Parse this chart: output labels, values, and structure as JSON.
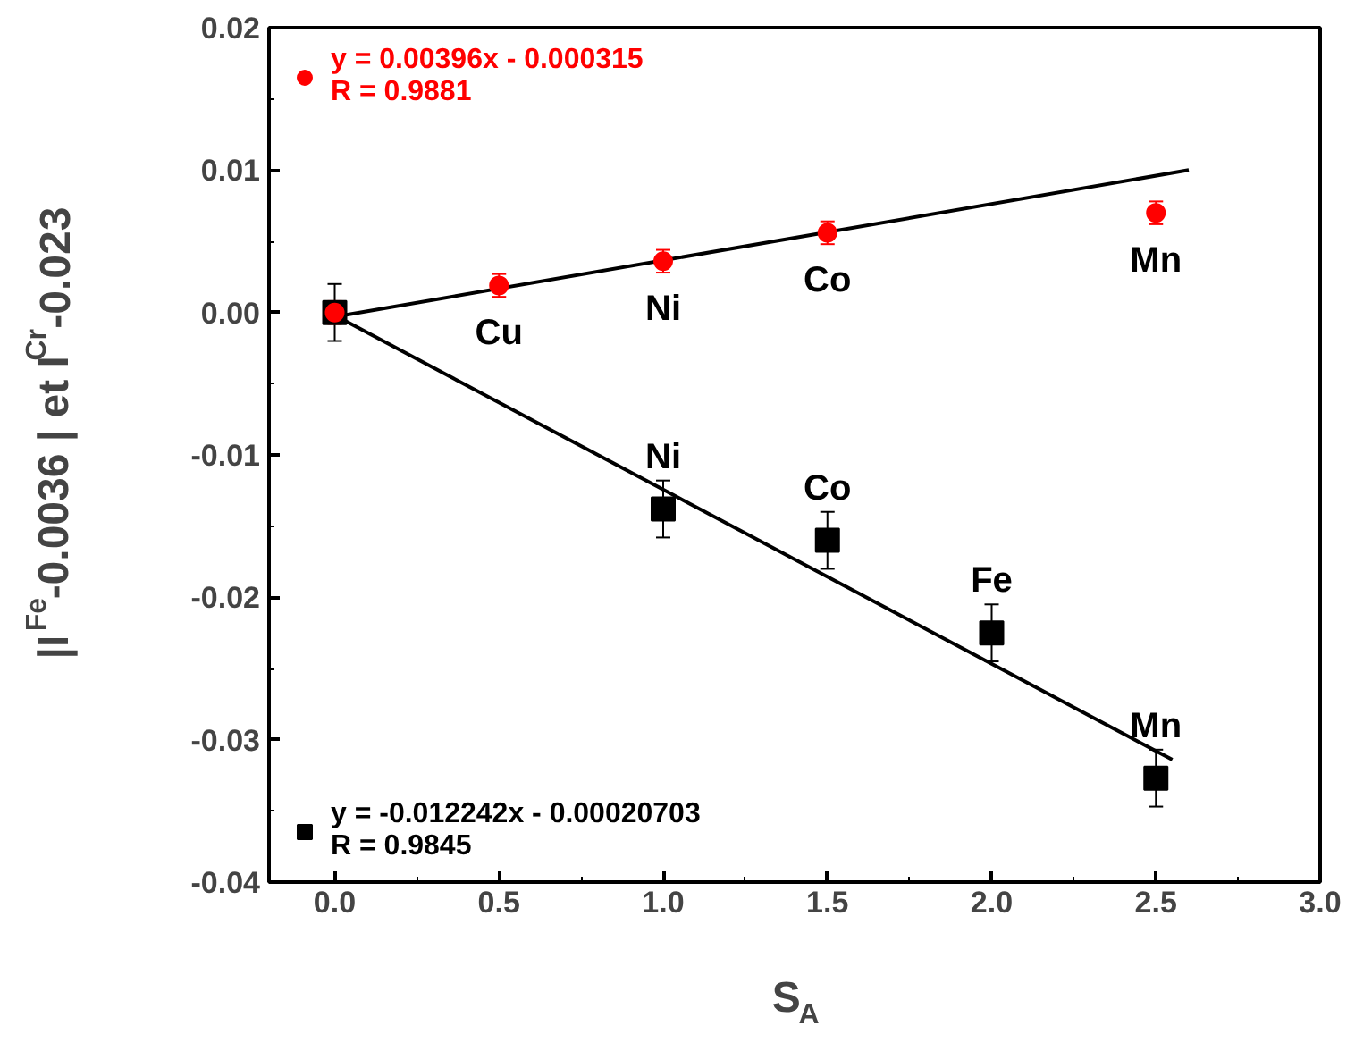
{
  "chart_data": {
    "type": "scatter",
    "xlabel": "S$_{A}$",
    "ylabel": "|I$^{Fe}$-0.0036 | et I$^{Cr}$-0.023",
    "xlim": [
      -0.2,
      3.0
    ],
    "ylim": [
      -0.04,
      0.02
    ],
    "xticks": [
      {
        "value": 0,
        "label": "0.0"
      },
      {
        "value": 0.5,
        "label": "0.5"
      },
      {
        "value": 1.0,
        "label": "1.0"
      },
      {
        "value": 1.5,
        "label": "1.5"
      },
      {
        "value": 2.0,
        "label": "2.0"
      },
      {
        "value": 2.5,
        "label": "2.5"
      },
      {
        "value": 3.0,
        "label": "3.0"
      }
    ],
    "yticks": [
      {
        "value": -0.04,
        "label": "-0.04"
      },
      {
        "value": -0.03,
        "label": "-0.03"
      },
      {
        "value": -0.02,
        "label": "-0.02"
      },
      {
        "value": -0.01,
        "label": "-0.01"
      },
      {
        "value": 0,
        "label": "0.00"
      },
      {
        "value": 0.01,
        "label": "0.01"
      },
      {
        "value": 0.02,
        "label": "0.02"
      }
    ],
    "grid": false,
    "legend": "left",
    "series": [
      {
        "name": "y = 0.00396x - 0.000315\nR = 0.9881",
        "color": "#ff0000",
        "marker": "circle",
        "x": [
          0,
          0.5,
          1.0,
          1.5,
          2.5
        ],
        "values": [
          0.0,
          0.0019,
          0.0036,
          0.0056,
          0.007
        ],
        "errors": [
          0.0008,
          0.0008,
          0.0008,
          0.0008,
          0.0008
        ]
      },
      {
        "name": "y = -0.012242x - 0.00020703\nR = 0.9845",
        "color": "#000000",
        "marker": "square",
        "x": [
          0,
          1.0,
          1.5,
          2.0,
          2.5
        ],
        "values": [
          0.0,
          -0.0138,
          -0.016,
          -0.0225,
          -0.0327
        ],
        "errors": [
          0.002,
          0.002,
          0.002,
          0.002,
          0.002
        ]
      },
      {
        "type": "line",
        "color": "#000000",
        "x": [
          0,
          2.6
        ],
        "values": [
          -0.0003,
          0.01
        ]
      },
      {
        "type": "line",
        "color": "#000000",
        "x": [
          0,
          2.55
        ],
        "values": [
          -0.0002,
          -0.0314
        ]
      }
    ],
    "annotations": [
      {
        "text": "Cu",
        "x": 0.5,
        "y": 0.0019
      },
      {
        "text": "Ni",
        "x": 1.0,
        "y": 0.0036
      },
      {
        "text": "Co",
        "x": 1.5,
        "y": 0.0056
      },
      {
        "text": "Mn",
        "x": 2.5,
        "y": 0.007
      },
      {
        "text": "Ni",
        "x": 1.0,
        "y": -0.0138
      },
      {
        "text": "Co",
        "x": 1.5,
        "y": -0.016
      },
      {
        "text": "Fe",
        "x": 2.0,
        "y": -0.0225
      },
      {
        "text": "Mn",
        "x": 2.5,
        "y": -0.0327
      }
    ]
  }
}
